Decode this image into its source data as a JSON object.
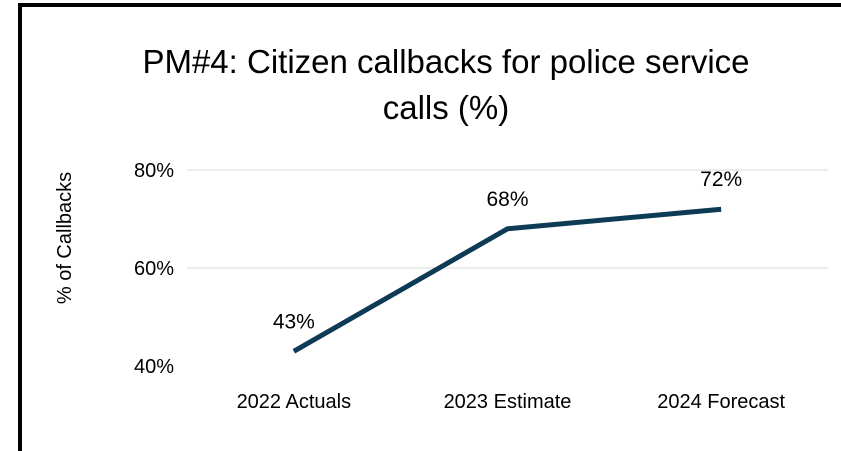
{
  "chart_data": {
    "type": "line",
    "title_lines": [
      "PM#4: Citizen callbacks for police service",
      "calls (%)"
    ],
    "xlabel": "",
    "ylabel": "% of Callbacks",
    "categories": [
      "2022 Actuals",
      "2023 Estimate",
      "2024 Forecast"
    ],
    "series": [
      {
        "values": [
          43,
          68,
          72
        ],
        "data_labels": [
          "43%",
          "68%",
          "72%"
        ],
        "color": "#0d3b55"
      }
    ],
    "y_ticks": [
      40,
      60,
      80
    ],
    "y_tick_labels": [
      "40%",
      "60%",
      "80%"
    ],
    "ylim": [
      40,
      80
    ],
    "grid": true,
    "legend": "none"
  }
}
